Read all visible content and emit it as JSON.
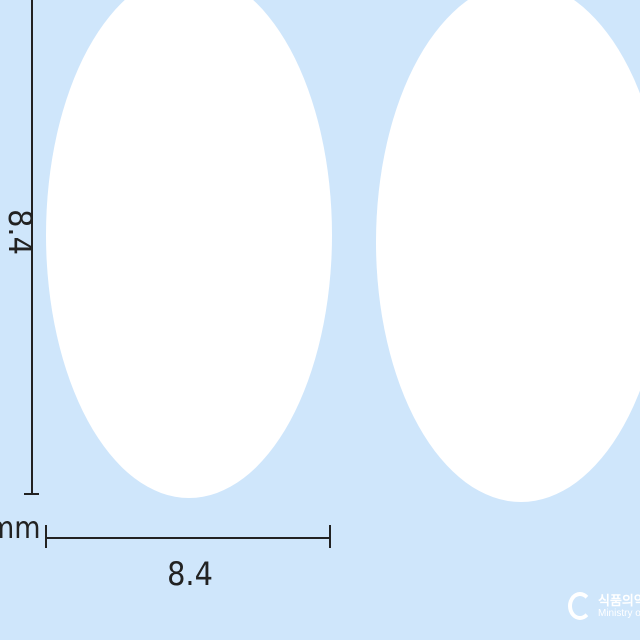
{
  "image": {
    "background_color": "#cfe6fb",
    "pill_color": "#ffffff",
    "pill_shape": "oval",
    "dimensions": {
      "height_value": "8.4",
      "width_value": "8.4",
      "unit": "mm"
    },
    "watermark": {
      "korean_text": "식품의약",
      "english_text": "Ministry of Fo",
      "icon": "ministry-logo-icon"
    }
  }
}
